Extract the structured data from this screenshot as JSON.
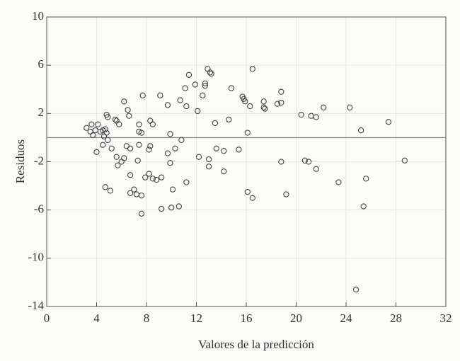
{
  "chart_data": {
    "type": "scatter",
    "xlabel": "Valores de la predicción",
    "ylabel": "Residuos",
    "xlim": [
      0,
      32
    ],
    "ylim": [
      -14,
      10
    ],
    "xticks": [
      0,
      4,
      8,
      12,
      16,
      20,
      24,
      28,
      32
    ],
    "yticks": [
      -14,
      -10,
      -6,
      -2,
      2,
      6,
      10
    ],
    "grid": true,
    "reference_line": 0,
    "color": "#444444",
    "series": [
      {
        "name": "Residuos",
        "color": "#444444",
        "x": [
          3.2,
          3.5,
          3.6,
          3.7,
          3.9,
          4.1,
          4.0,
          4.3,
          4.5,
          4.7,
          4.8,
          4.6,
          4.9,
          4.5,
          4.8,
          4.9,
          4.7,
          5.1,
          5.2,
          5.5,
          5.6,
          5.6,
          5.7,
          5.8,
          6.0,
          6.2,
          6.2,
          6.5,
          6.6,
          6.4,
          6.7,
          6.7,
          6.7,
          7.0,
          7.2,
          7.3,
          7.4,
          7.4,
          7.6,
          7.4,
          7.6,
          7.6,
          7.7,
          7.9,
          8.2,
          8.3,
          8.3,
          8.5,
          8.2,
          8.5,
          8.8,
          9.1,
          9.2,
          9.2,
          9.7,
          9.7,
          9.9,
          9.9,
          10.0,
          10.1,
          10.3,
          10.6,
          10.7,
          10.8,
          11.2,
          11.1,
          11.2,
          11.4,
          11.9,
          12.1,
          12.2,
          12.5,
          12.7,
          12.7,
          12.9,
          13.1,
          13.2,
          13.0,
          13.0,
          13.5,
          13.6,
          14.2,
          14.2,
          14.6,
          14.8,
          15.4,
          15.7,
          15.8,
          15.9,
          16.1,
          16.1,
          16.3,
          16.5,
          16.5,
          17.4,
          17.4,
          17.5,
          18.5,
          18.8,
          18.8,
          18.8,
          19.2,
          20.4,
          20.7,
          21.0,
          21.2,
          21.6,
          21.6,
          22.2,
          23.4,
          24.3,
          24.8,
          25.2,
          25.4,
          25.6,
          27.4,
          28.7
        ],
        "values": [
          0.8,
          0.5,
          1.1,
          0.2,
          0.6,
          1.1,
          -1.2,
          0.5,
          0.6,
          0.7,
          0.4,
          0.1,
          -0.2,
          -0.6,
          1.9,
          1.7,
          -4.1,
          -4.4,
          -0.9,
          1.5,
          1.4,
          -1.6,
          -2.3,
          1.1,
          -2.0,
          -1.7,
          3.0,
          2.3,
          1.8,
          -0.7,
          -0.9,
          -3.1,
          -4.6,
          -4.3,
          -4.7,
          -1.9,
          0.5,
          1.1,
          0.4,
          -0.6,
          -4.8,
          -6.3,
          3.5,
          -3.3,
          -1.0,
          -0.7,
          1.4,
          1.1,
          -3.0,
          -3.4,
          -3.5,
          3.5,
          -3.3,
          -5.9,
          2.7,
          -1.3,
          0.3,
          -2.1,
          -5.8,
          -4.3,
          -0.9,
          -5.7,
          3.1,
          -0.2,
          -3.7,
          4.1,
          2.6,
          5.2,
          4.4,
          2.2,
          -1.6,
          3.5,
          4.5,
          4.3,
          5.7,
          5.4,
          5.3,
          -1.8,
          -2.4,
          1.2,
          -0.9,
          -1.1,
          -2.8,
          1.5,
          4.1,
          -1.0,
          3.4,
          3.2,
          3.0,
          0.4,
          -4.5,
          2.6,
          5.7,
          -5.0,
          2.5,
          3.0,
          2.4,
          2.8,
          3.8,
          2.9,
          -2.0,
          -4.7,
          1.9,
          -1.9,
          -2.0,
          1.8,
          1.7,
          -2.6,
          2.5,
          -3.7,
          2.5,
          -12.6,
          0.6,
          -5.7,
          -3.4,
          1.3,
          -1.9
        ]
      }
    ]
  }
}
